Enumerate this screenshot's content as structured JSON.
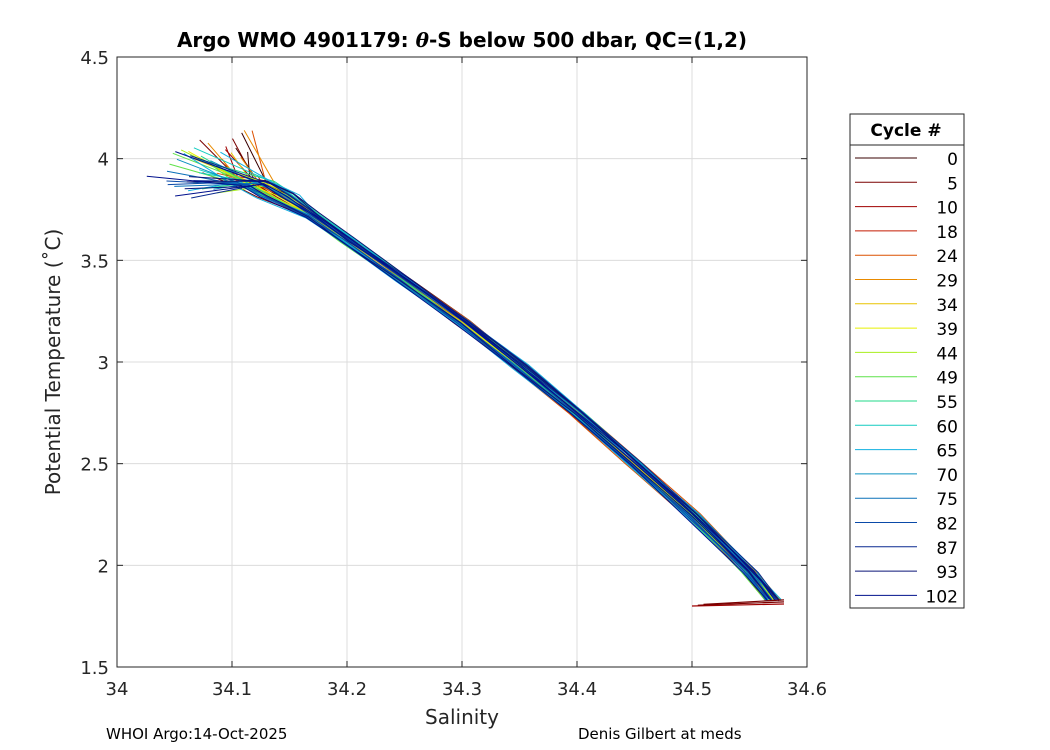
{
  "chart_data": {
    "type": "line",
    "title_prefix": "Argo WMO 4901179: ",
    "title_theta": "θ",
    "title_suffix": "-S below 500 dbar,  QC=(1,2)",
    "xlabel": "Salinity",
    "ylabel": "Potential Temperature (˚C)",
    "xlim": [
      34.0,
      34.6
    ],
    "ylim": [
      1.5,
      4.5
    ],
    "xticks": [
      "34",
      "34.1",
      "34.2",
      "34.3",
      "34.4",
      "34.5",
      "34.6"
    ],
    "yticks": [
      "1.5",
      "2",
      "2.5",
      "3",
      "3.5",
      "4",
      "4.5"
    ],
    "grid": true,
    "legend_title": "Cycle #",
    "legend_placement": "right",
    "legend_items": [
      {
        "label": "0",
        "color": "#3a0000"
      },
      {
        "label": "5",
        "color": "#7a0000"
      },
      {
        "label": "10",
        "color": "#a00000"
      },
      {
        "label": "18",
        "color": "#c41a00"
      },
      {
        "label": "24",
        "color": "#dc5000"
      },
      {
        "label": "29",
        "color": "#e88a00"
      },
      {
        "label": "34",
        "color": "#e8c400"
      },
      {
        "label": "39",
        "color": "#e6f000"
      },
      {
        "label": "44",
        "color": "#a8ee1e"
      },
      {
        "label": "49",
        "color": "#5fe24a"
      },
      {
        "label": "55",
        "color": "#22d88a"
      },
      {
        "label": "60",
        "color": "#12ccc0"
      },
      {
        "label": "65",
        "color": "#10b0e0"
      },
      {
        "label": "70",
        "color": "#0a90c0"
      },
      {
        "label": "75",
        "color": "#0a70b8"
      },
      {
        "label": "82",
        "color": "#0a4aa8"
      },
      {
        "label": "87",
        "color": "#0a2890"
      },
      {
        "label": "93",
        "color": "#0a1478"
      },
      {
        "label": "102",
        "color": "#00108c"
      }
    ],
    "profile_shape": {
      "x": [
        34.57,
        34.55,
        34.5,
        34.45,
        34.4,
        34.35,
        34.3,
        34.25,
        34.2,
        34.17,
        34.14,
        34.12,
        34.1
      ],
      "y": [
        1.83,
        1.97,
        2.25,
        2.5,
        2.75,
        2.98,
        3.2,
        3.4,
        3.6,
        3.72,
        3.82,
        3.88,
        3.92
      ]
    },
    "bottom_hook": {
      "x": [
        34.58,
        34.5
      ],
      "y": [
        1.81,
        1.8
      ]
    }
  },
  "footer": {
    "left": "WHOI Argo:14-Oct-2025",
    "right": "Denis Gilbert at meds"
  }
}
